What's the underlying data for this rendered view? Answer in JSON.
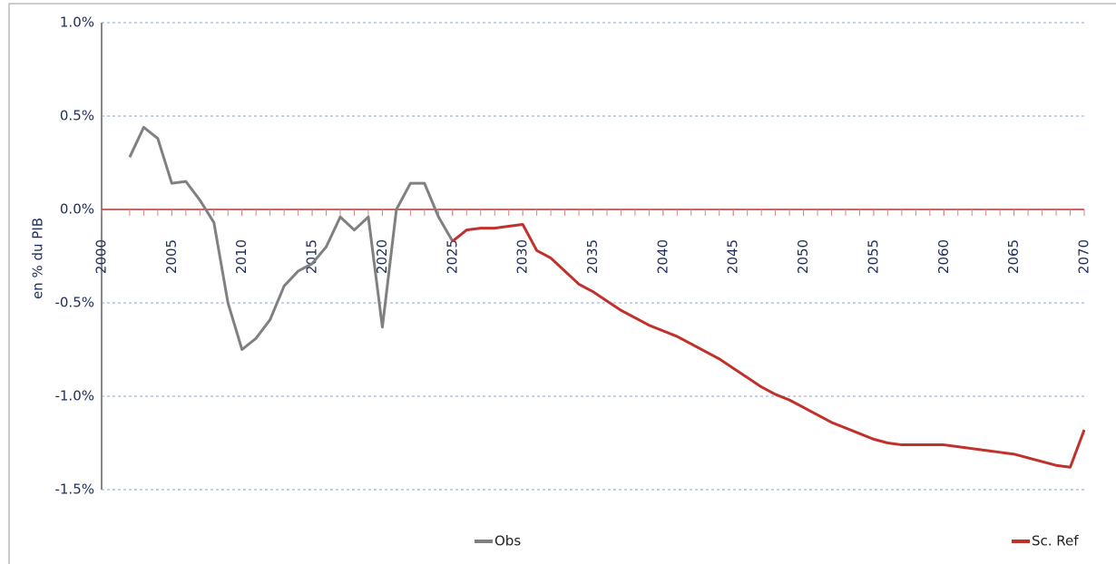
{
  "chart_data": {
    "type": "line",
    "y_label": "en % du PIB",
    "x": [
      2002,
      2003,
      2004,
      2005,
      2006,
      2007,
      2008,
      2009,
      2010,
      2011,
      2012,
      2013,
      2014,
      2015,
      2016,
      2017,
      2018,
      2019,
      2020,
      2021,
      2022,
      2023,
      2024,
      2025,
      2026,
      2027,
      2028,
      2029,
      2030,
      2031,
      2032,
      2033,
      2034,
      2035,
      2036,
      2037,
      2038,
      2039,
      2040,
      2041,
      2042,
      2043,
      2044,
      2045,
      2046,
      2047,
      2048,
      2049,
      2050,
      2051,
      2052,
      2053,
      2054,
      2055,
      2056,
      2057,
      2058,
      2059,
      2060,
      2061,
      2062,
      2063,
      2064,
      2065,
      2066,
      2067,
      2068,
      2069,
      2070
    ],
    "series": [
      {
        "name": "Obs",
        "color": "#808080",
        "values": [
          0.28,
          0.44,
          0.38,
          0.14,
          0.15,
          0.05,
          -0.07,
          -0.5,
          -0.75,
          -0.69,
          -0.59,
          -0.41,
          -0.33,
          -0.29,
          -0.2,
          -0.04,
          -0.11,
          -0.04,
          -0.63,
          0.0,
          0.14,
          0.14,
          -0.04,
          -0.17,
          null,
          null,
          null,
          null,
          null,
          null,
          null,
          null,
          null,
          null,
          null,
          null,
          null,
          null,
          null,
          null,
          null,
          null,
          null,
          null,
          null,
          null,
          null,
          null,
          null,
          null,
          null,
          null,
          null,
          null,
          null,
          null,
          null,
          null,
          null,
          null,
          null,
          null,
          null,
          null,
          null,
          null,
          null,
          null,
          null
        ]
      },
      {
        "name": "Sc. Ref",
        "color": "#c0312b",
        "values": [
          null,
          null,
          null,
          null,
          null,
          null,
          null,
          null,
          null,
          null,
          null,
          null,
          null,
          null,
          null,
          null,
          null,
          null,
          null,
          null,
          null,
          null,
          null,
          -0.17,
          -0.11,
          -0.1,
          -0.1,
          -0.09,
          -0.08,
          -0.22,
          -0.26,
          -0.33,
          -0.4,
          -0.44,
          -0.49,
          -0.54,
          -0.58,
          -0.62,
          -0.65,
          -0.68,
          -0.72,
          -0.76,
          -0.8,
          -0.85,
          -0.9,
          -0.95,
          -0.99,
          -1.02,
          -1.06,
          -1.1,
          -1.14,
          -1.17,
          -1.2,
          -1.23,
          -1.25,
          -1.26,
          -1.26,
          -1.26,
          -1.26,
          -1.27,
          -1.28,
          -1.29,
          -1.3,
          -1.31,
          -1.33,
          -1.35,
          -1.37,
          -1.38,
          -1.18
        ]
      }
    ],
    "xlim": [
      2000,
      2070
    ],
    "xticks": [
      2000,
      2005,
      2010,
      2015,
      2020,
      2025,
      2030,
      2035,
      2040,
      2045,
      2050,
      2055,
      2060,
      2065,
      2070
    ],
    "ylim": [
      -1.5,
      1.0
    ],
    "yticks": [
      {
        "value": -1.5,
        "label": "-1.5%"
      },
      {
        "value": -1.0,
        "label": "-1.0%"
      },
      {
        "value": -0.5,
        "label": "-0.5%"
      },
      {
        "value": 0.0,
        "label": "0.0%"
      },
      {
        "value": 0.5,
        "label": "0.5%"
      },
      {
        "value": 1.0,
        "label": "1.0%"
      }
    ],
    "grid": true,
    "legend": "bottom"
  }
}
